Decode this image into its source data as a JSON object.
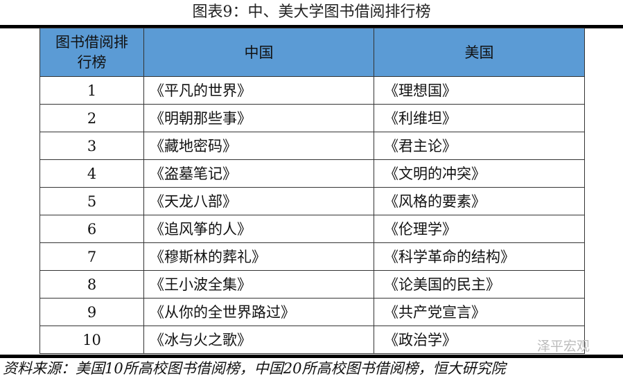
{
  "title": "图表9：中、美大学图书借阅排行榜",
  "headers": [
    "图书借阅排行榜",
    "中国",
    "美国"
  ],
  "rows": [
    [
      "1",
      "《平凡的世界》",
      "《理想国》"
    ],
    [
      "2",
      "《明朝那些事》",
      "《利维坦》"
    ],
    [
      "3",
      "《藏地密码》",
      "《君主论》"
    ],
    [
      "4",
      "《盗墓笔记》",
      "《文明的冲突》"
    ],
    [
      "5",
      "《天龙八部》",
      "《风格的要素》"
    ],
    [
      "6",
      "《追风筝的人》",
      "《伦理学》"
    ],
    [
      "7",
      "《穆斯林的葬礼》",
      "《科学革命的结构》"
    ],
    [
      "8",
      "《王小波全集》",
      "《论美国的民主》"
    ],
    [
      "9",
      "《从你的全世界路过》",
      "《共产党宣言》"
    ],
    [
      "10",
      "《冰与火之歌》",
      "《政治学》"
    ]
  ],
  "source": "资料来源：美国10所高校图书借阅榜，中国20所高校图书借阅榜，恒大研究院",
  "watermark": "泽平宏观",
  "header_color": "#5b9bd5"
}
